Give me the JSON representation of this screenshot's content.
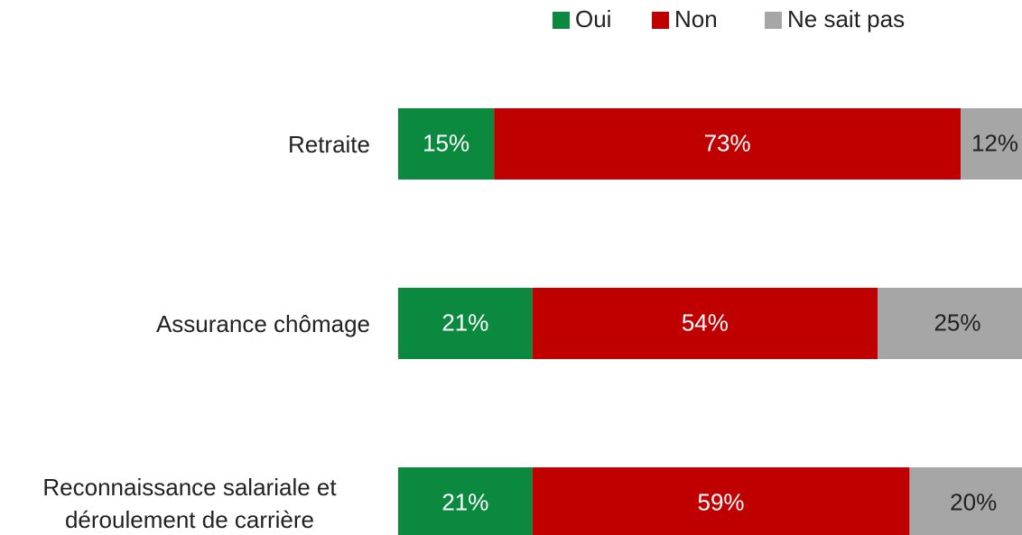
{
  "chart_data": {
    "type": "stacked-bar-horizontal",
    "categories": [
      "Retraite",
      "Assurance chômage",
      "Reconnaissance salariale et déroulement de carrière"
    ],
    "series": [
      {
        "name": "Oui",
        "color": "#0b8a3f",
        "values": [
          15,
          21,
          21
        ],
        "value_labels": [
          "15%",
          "21%",
          "21%"
        ]
      },
      {
        "name": "Non",
        "color": "#c00000",
        "values": [
          73,
          54,
          59
        ],
        "value_labels": [
          "73%",
          "54%",
          "59%"
        ]
      },
      {
        "name": "Ne sait pas",
        "color": "#a6a6a6",
        "values": [
          12,
          25,
          20
        ],
        "value_labels": [
          "12%",
          "25%",
          "20%"
        ]
      }
    ],
    "xlim": [
      0,
      100
    ],
    "legend": "top"
  }
}
